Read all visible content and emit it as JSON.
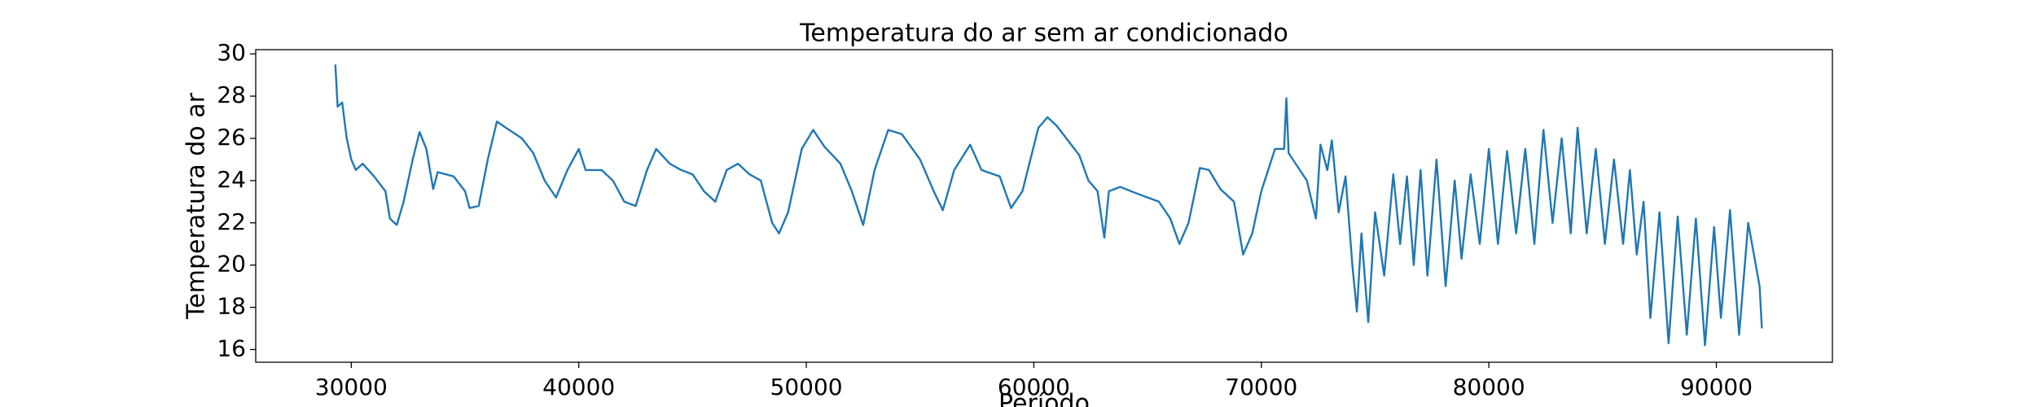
{
  "chart_data": {
    "type": "line",
    "title": "Temperatura do ar sem ar condicionado",
    "xlabel": "Período",
    "ylabel": "Temperatura do ar",
    "color": "#1f77b4",
    "xlim": [
      25800,
      95100
    ],
    "ylim": [
      15.4,
      30.2
    ],
    "xticks": [
      30000,
      40000,
      50000,
      60000,
      70000,
      80000,
      90000
    ],
    "yticks": [
      16,
      18,
      20,
      22,
      24,
      26,
      28,
      30
    ],
    "x": [
      29300,
      29400,
      29600,
      29800,
      30000,
      30200,
      30500,
      31000,
      31500,
      31700,
      32000,
      32300,
      32700,
      33000,
      33300,
      33600,
      33800,
      34500,
      35000,
      35200,
      35600,
      36000,
      36400,
      36800,
      37500,
      38000,
      38500,
      39000,
      39500,
      40000,
      40300,
      41000,
      41500,
      42000,
      42500,
      43000,
      43400,
      44000,
      44500,
      45000,
      45500,
      46000,
      46500,
      47000,
      47500,
      48000,
      48500,
      48800,
      49200,
      49800,
      50300,
      50800,
      51500,
      52000,
      52500,
      53000,
      53600,
      54200,
      55000,
      55600,
      56000,
      56500,
      57200,
      57700,
      58500,
      59000,
      59500,
      60200,
      60600,
      61000,
      62000,
      62400,
      62800,
      63100,
      63300,
      63800,
      64500,
      65000,
      65500,
      66000,
      66400,
      66800,
      67300,
      67700,
      68200,
      68800,
      69200,
      69600,
      70000,
      70600,
      71000,
      71100,
      71200,
      72000,
      72400,
      72600,
      72900,
      73100,
      73400,
      73700,
      74000,
      74200,
      74400,
      74700,
      75000,
      75400,
      75800,
      76100,
      76400,
      76700,
      77000,
      77300,
      77700,
      78100,
      78500,
      78800,
      79200,
      79600,
      80000,
      80400,
      80800,
      81200,
      81600,
      82000,
      82400,
      82800,
      83200,
      83600,
      83900,
      84300,
      84700,
      85100,
      85500,
      85900,
      86200,
      86500,
      86800,
      87100,
      87500,
      87900,
      88300,
      88700,
      89100,
      89500,
      89900,
      90200,
      90600,
      91000,
      91400,
      91900,
      92000
    ],
    "values": [
      29.5,
      27.5,
      27.7,
      26,
      25,
      24.5,
      24.8,
      24.2,
      23.5,
      22.2,
      21.9,
      23,
      25,
      26.3,
      25.5,
      23.6,
      24.4,
      24.2,
      23.5,
      22.7,
      22.8,
      25,
      26.8,
      26.5,
      26,
      25.3,
      24,
      23.2,
      24.5,
      25.5,
      24.5,
      24.5,
      24,
      23,
      22.8,
      24.5,
      25.5,
      24.8,
      24.5,
      24.3,
      23.5,
      23,
      24.5,
      24.8,
      24.3,
      24,
      22,
      21.5,
      22.5,
      25.5,
      26.4,
      25.6,
      24.8,
      23.5,
      21.9,
      24.5,
      26.4,
      26.2,
      25,
      23.5,
      22.6,
      24.5,
      25.7,
      24.5,
      24.2,
      22.7,
      23.5,
      26.5,
      27,
      26.6,
      25.2,
      24,
      23.5,
      21.3,
      23.5,
      23.7,
      23.4,
      23.2,
      23,
      22.2,
      21,
      22,
      24.6,
      24.5,
      23.6,
      23,
      20.5,
      21.5,
      23.5,
      25.5,
      25.5,
      27.9,
      25.3,
      24,
      22.2,
      25.7,
      24.5,
      25.9,
      22.5,
      24.2,
      20,
      17.8,
      21.5,
      17.3,
      22.5,
      19.5,
      24.3,
      21,
      24.2,
      20,
      24.5,
      19.5,
      25,
      19,
      24,
      20.3,
      24.3,
      21,
      25.5,
      21,
      25.4,
      21.5,
      25.5,
      21,
      26.4,
      22,
      26,
      21.5,
      26.5,
      21.5,
      25.5,
      21,
      25,
      21,
      24.5,
      20.5,
      23,
      17.5,
      22.5,
      16.3,
      22.3,
      16.7,
      22.2,
      16.2,
      21.8,
      17.5,
      22.6,
      16.7,
      22,
      19,
      17
    ]
  }
}
